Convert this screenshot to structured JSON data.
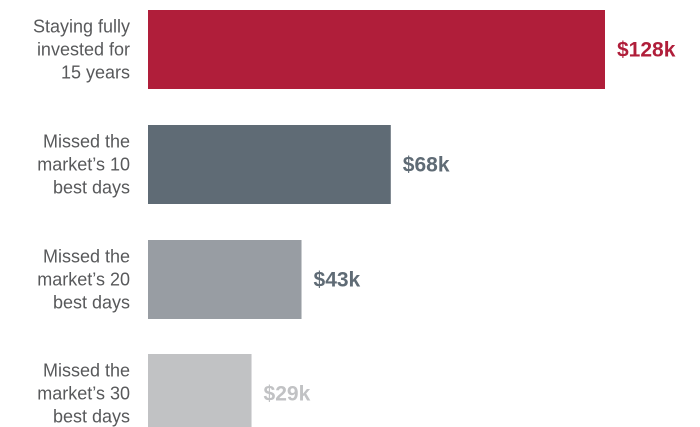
{
  "chart_data": {
    "type": "bar",
    "orientation": "horizontal",
    "categories": [
      [
        "Staying fully",
        "invested for",
        "15 years"
      ],
      [
        "Missed the",
        "market’s 10",
        "best days"
      ],
      [
        "Missed the",
        "market’s 20",
        "best days"
      ],
      [
        "Missed the",
        "market’s 30",
        "best days"
      ]
    ],
    "values": [
      128,
      68,
      43,
      29
    ],
    "value_labels": [
      "$128k",
      "$68k",
      "$43k",
      "$29k"
    ],
    "colors": [
      "#b01e3a",
      "#5f6b75",
      "#989da3",
      "#c1c2c4"
    ],
    "value_label_colors": [
      "#b01e3a",
      "#5f6b75",
      "#5f6b75",
      "#c1c2c4"
    ],
    "title": "",
    "xlabel": "",
    "ylabel": "",
    "grid": false,
    "legend": "none"
  }
}
